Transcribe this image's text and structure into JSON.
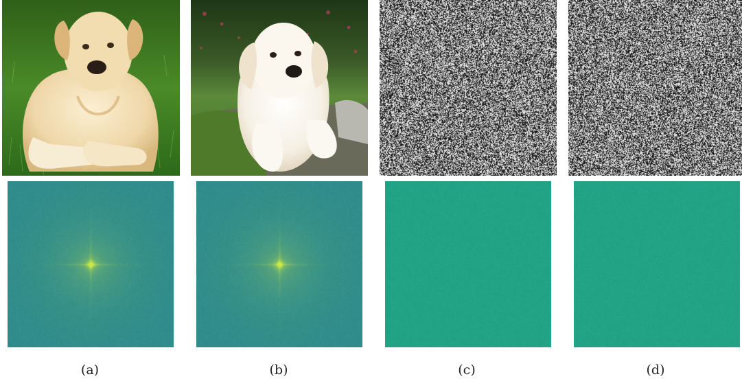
{
  "figure": {
    "panels": [
      {
        "caption": "(a)",
        "top": {
          "kind": "photo",
          "subject": "labrador-dog-lying-on-grass"
        },
        "bottom": {
          "kind": "spectrum",
          "has_center_peak": true
        }
      },
      {
        "caption": "(b)",
        "top": {
          "kind": "photo",
          "subject": "white-puppy-on-mossy-rock"
        },
        "bottom": {
          "kind": "spectrum",
          "has_center_peak": true
        }
      },
      {
        "caption": "(c)",
        "top": {
          "kind": "noise"
        },
        "bottom": {
          "kind": "spectrum",
          "has_center_peak": false
        }
      },
      {
        "caption": "(d)",
        "top": {
          "kind": "noise"
        },
        "bottom": {
          "kind": "spectrum",
          "has_center_peak": false
        }
      }
    ],
    "colors": {
      "spectrum_dark": "#2f8c8c",
      "spectrum_flat": "#23a386",
      "spectrum_peak": "#c8e84a",
      "grass": "#3e7a22",
      "dog_fur_a": "#f0dcb0",
      "dog_fur_b": "#faf6ee"
    }
  }
}
